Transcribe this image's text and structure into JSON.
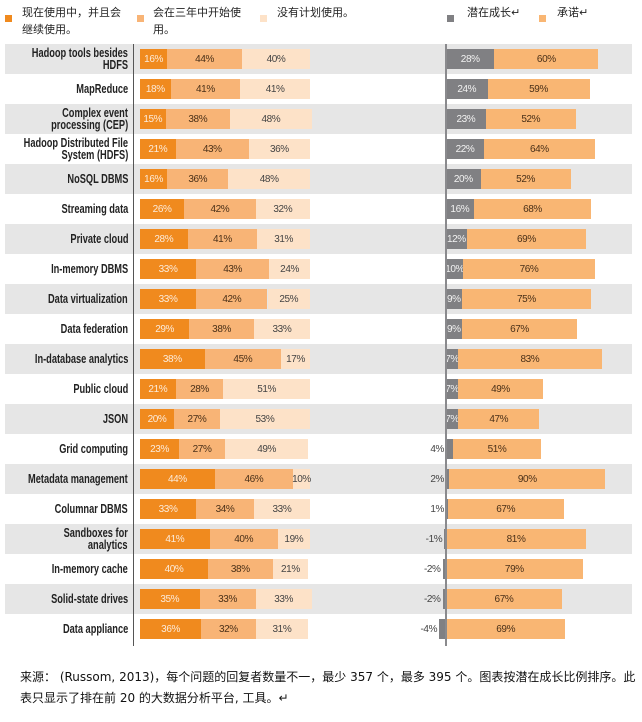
{
  "legend_left": [
    {
      "lines": [
        "现在使用中，并且会",
        "继续使用。"
      ],
      "color": "#F08A1E"
    },
    {
      "lines": [
        "会在三年中开始使",
        "用。"
      ],
      "color": "#F8B476"
    },
    {
      "lines": [
        "没有计划使用。"
      ],
      "color": "#FDE2C8"
    }
  ],
  "legend_right": [
    {
      "lines": [
        "潜在成长↵"
      ],
      "color": "#808083"
    },
    {
      "lines": [
        "承诺↵"
      ],
      "color": "#F9B673"
    }
  ],
  "chart_data": {
    "type": "bar",
    "orientation": "horizontal",
    "title": "",
    "xlabel": "",
    "ylabel": "",
    "categories": [
      [
        "Hadoop tools besides",
        "HDFS"
      ],
      [
        "MapReduce"
      ],
      [
        "Complex event",
        "processing (CEP)"
      ],
      [
        "Hadoop Distributed File",
        "System (HDFS)"
      ],
      [
        "NoSQL DBMS"
      ],
      [
        "Streaming data"
      ],
      [
        "Private cloud"
      ],
      [
        "In-memory DBMS"
      ],
      [
        "Data virtualization"
      ],
      [
        "Data federation"
      ],
      [
        "In-database analytics"
      ],
      [
        "Public cloud"
      ],
      [
        "JSON"
      ],
      [
        "Grid computing"
      ],
      [
        "Metadata management"
      ],
      [
        "Columnar DBMS"
      ],
      [
        "Sandboxes for",
        "analytics"
      ],
      [
        "In-memory cache"
      ],
      [
        "Solid-state drives"
      ],
      [
        "Data appliance"
      ]
    ],
    "left_panel": {
      "stacked": true,
      "unit": "%",
      "xlim": [
        0,
        100
      ],
      "series": [
        {
          "key": "using-now",
          "name": "现在使用中，并且会继续使用。",
          "color": "#F08A1E",
          "text_color": "#FCEBDA",
          "values": [
            16,
            18,
            15,
            21,
            16,
            26,
            28,
            33,
            33,
            29,
            38,
            21,
            20,
            23,
            44,
            33,
            41,
            40,
            35,
            36
          ]
        },
        {
          "key": "within-3-years",
          "name": "会在三年中开始使用。",
          "color": "#F8B476",
          "text_color": "#4a3018",
          "values": [
            44,
            41,
            38,
            43,
            36,
            42,
            41,
            43,
            42,
            38,
            45,
            28,
            27,
            27,
            46,
            34,
            40,
            38,
            33,
            32
          ]
        },
        {
          "key": "no-plans",
          "name": "没有计划使用。",
          "color": "#FDE2C8",
          "text_color": "#444444",
          "values": [
            40,
            41,
            48,
            36,
            48,
            32,
            31,
            24,
            25,
            33,
            17,
            51,
            53,
            49,
            10,
            33,
            19,
            21,
            33,
            31
          ]
        }
      ]
    },
    "right_panel": {
      "unit": "%",
      "xlim": [
        -5,
        100
      ],
      "series": [
        {
          "key": "potential-growth",
          "name": "潜在成长",
          "color": "#808083",
          "text_color": "#F2F2F2",
          "values": [
            28,
            24,
            23,
            22,
            20,
            16,
            12,
            10,
            9,
            9,
            7,
            7,
            7,
            4,
            2,
            1,
            -1,
            -2,
            -2,
            -4
          ]
        },
        {
          "key": "commitment",
          "name": "承诺",
          "color": "#F9B673",
          "text_color": "#4a3018",
          "values": [
            60,
            59,
            52,
            64,
            52,
            68,
            69,
            76,
            75,
            67,
            83,
            49,
            47,
            51,
            90,
            67,
            81,
            79,
            67,
            69
          ]
        }
      ]
    },
    "grid": false,
    "legend_position": "top",
    "sorted_by": "potential-growth"
  },
  "footer": {
    "lines": [
      "来源：  (Russom, 2013)，每个问题的回复者数量不一，最少 357 个，最多 395 个。图表按潜在成长比例排序。此",
      "表只显示了排在前 20 的大数据分析平台, 工具。↵"
    ]
  }
}
